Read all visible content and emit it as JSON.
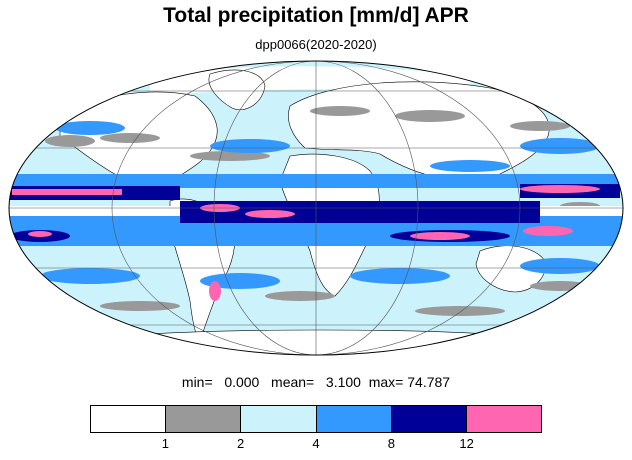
{
  "title": "Total precipitation [mm/d] APR",
  "subtitle": "dpp0066(2020-2020)",
  "stats": {
    "min_label": "min=",
    "min_value": "0.000",
    "mean_label": "mean=",
    "mean_value": "3.100",
    "max_label": "max=",
    "max_value": "74.787"
  },
  "legend": {
    "colors": [
      "#ffffff",
      "#999999",
      "#ccf2fc",
      "#3399ff",
      "#000099",
      "#ff66b2"
    ],
    "labels": [
      "1",
      "2",
      "4",
      "8",
      "12"
    ]
  },
  "map": {
    "projection": "mollweide",
    "ocean_fill": "#ccf2fc",
    "land_fill": "#ffffff",
    "outline_color": "#000000"
  }
}
